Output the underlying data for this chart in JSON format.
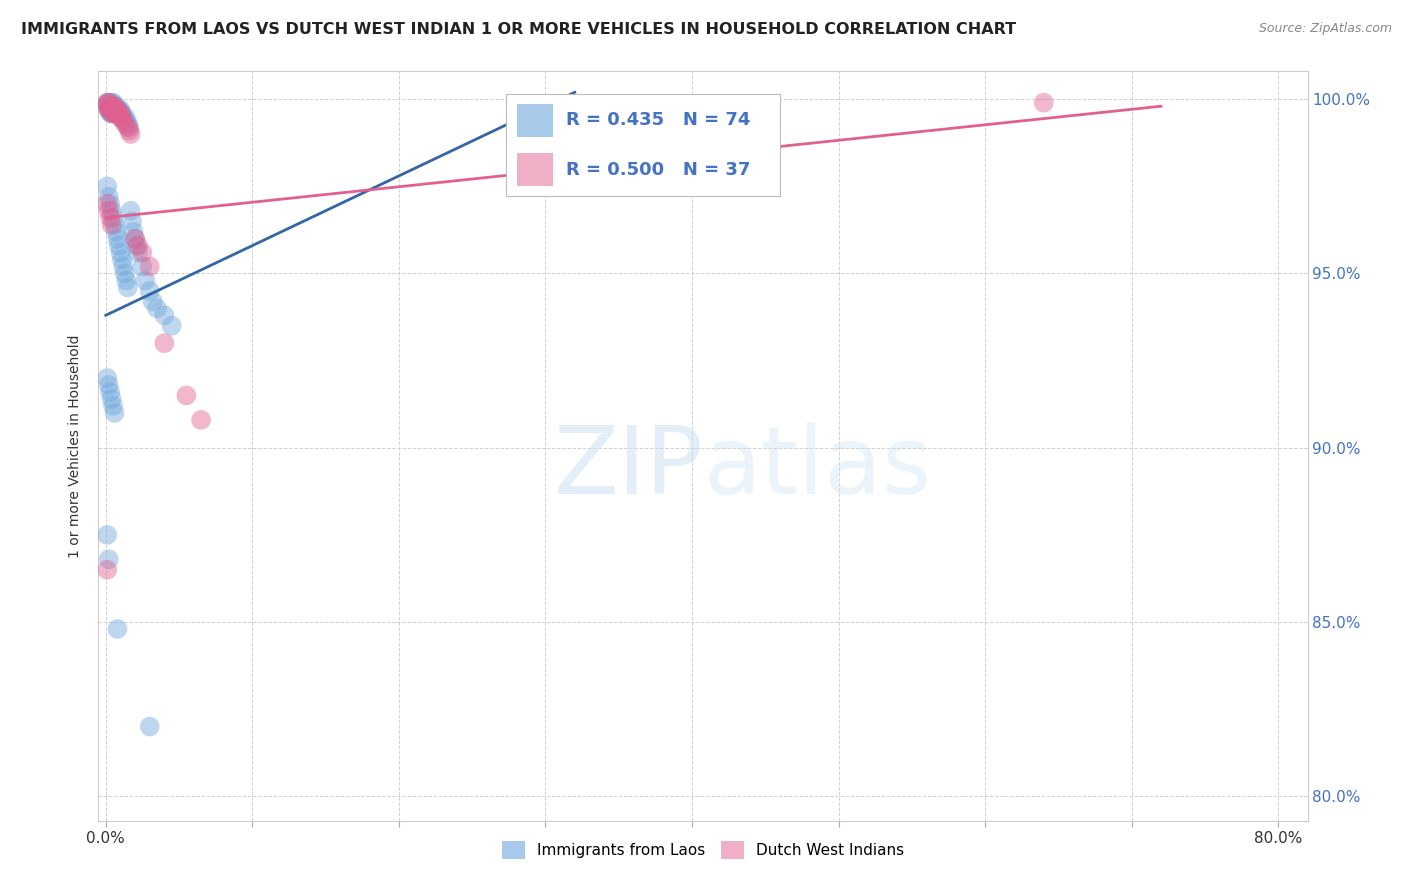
{
  "title": "IMMIGRANTS FROM LAOS VS DUTCH WEST INDIAN 1 OR MORE VEHICLES IN HOUSEHOLD CORRELATION CHART",
  "source": "Source: ZipAtlas.com",
  "ylabel": "1 or more Vehicles in Household",
  "xlim": [
    -0.005,
    0.82
  ],
  "ylim": [
    0.793,
    1.008
  ],
  "xticks": [
    0.0,
    0.1,
    0.2,
    0.3,
    0.4,
    0.5,
    0.6,
    0.7,
    0.8
  ],
  "xticklabels": [
    "0.0%",
    "",
    "",
    "",
    "",
    "",
    "",
    "",
    "80.0%"
  ],
  "yticks": [
    0.8,
    0.85,
    0.9,
    0.95,
    1.0
  ],
  "yticklabels": [
    "80.0%",
    "85.0%",
    "90.0%",
    "95.0%",
    "100.0%"
  ],
  "blue_color": "#6fa8dc",
  "pink_color": "#e06090",
  "blue_line_color": "#3465a4",
  "pink_line_color": "#e06090",
  "blue_R": 0.435,
  "blue_N": 74,
  "pink_R": 0.5,
  "pink_N": 37,
  "legend1_label": "Immigrants from Laos",
  "legend2_label": "Dutch West Indians",
  "watermark_zip": "ZIP",
  "watermark_atlas": "atlas",
  "background_color": "#ffffff",
  "blue_scatter_x": [
    0.001,
    0.001,
    0.002,
    0.002,
    0.002,
    0.003,
    0.003,
    0.003,
    0.003,
    0.004,
    0.004,
    0.004,
    0.004,
    0.005,
    0.005,
    0.005,
    0.005,
    0.006,
    0.006,
    0.006,
    0.007,
    0.007,
    0.007,
    0.008,
    0.008,
    0.009,
    0.009,
    0.01,
    0.01,
    0.011,
    0.011,
    0.012,
    0.013,
    0.014,
    0.015,
    0.016,
    0.017,
    0.018,
    0.019,
    0.02,
    0.021,
    0.022,
    0.025,
    0.027,
    0.03,
    0.032,
    0.035,
    0.04,
    0.045,
    0.001,
    0.002,
    0.003,
    0.004,
    0.005,
    0.006,
    0.007,
    0.008,
    0.009,
    0.01,
    0.011,
    0.012,
    0.013,
    0.014,
    0.015,
    0.001,
    0.002,
    0.003,
    0.004,
    0.005,
    0.006,
    0.001,
    0.002,
    0.008,
    0.03
  ],
  "blue_scatter_y": [
    0.999,
    0.998,
    0.999,
    0.998,
    0.997,
    0.999,
    0.998,
    0.997,
    0.996,
    0.999,
    0.998,
    0.997,
    0.996,
    0.999,
    0.998,
    0.997,
    0.996,
    0.998,
    0.997,
    0.996,
    0.998,
    0.997,
    0.996,
    0.997,
    0.996,
    0.997,
    0.996,
    0.997,
    0.995,
    0.996,
    0.995,
    0.994,
    0.995,
    0.994,
    0.993,
    0.992,
    0.968,
    0.965,
    0.962,
    0.96,
    0.958,
    0.956,
    0.952,
    0.948,
    0.945,
    0.942,
    0.94,
    0.938,
    0.935,
    0.975,
    0.972,
    0.97,
    0.968,
    0.966,
    0.964,
    0.962,
    0.96,
    0.958,
    0.956,
    0.954,
    0.952,
    0.95,
    0.948,
    0.946,
    0.92,
    0.918,
    0.916,
    0.914,
    0.912,
    0.91,
    0.875,
    0.868,
    0.848,
    0.82
  ],
  "pink_scatter_x": [
    0.001,
    0.001,
    0.002,
    0.002,
    0.003,
    0.003,
    0.004,
    0.004,
    0.005,
    0.005,
    0.006,
    0.006,
    0.007,
    0.007,
    0.008,
    0.008,
    0.009,
    0.01,
    0.011,
    0.012,
    0.013,
    0.015,
    0.016,
    0.017,
    0.02,
    0.022,
    0.025,
    0.03,
    0.04,
    0.055,
    0.065,
    0.001,
    0.002,
    0.003,
    0.004,
    0.001,
    0.64
  ],
  "pink_scatter_y": [
    0.999,
    0.998,
    0.999,
    0.997,
    0.998,
    0.997,
    0.998,
    0.996,
    0.997,
    0.996,
    0.998,
    0.997,
    0.997,
    0.996,
    0.997,
    0.996,
    0.995,
    0.996,
    0.995,
    0.994,
    0.993,
    0.992,
    0.991,
    0.99,
    0.96,
    0.958,
    0.956,
    0.952,
    0.93,
    0.915,
    0.908,
    0.97,
    0.968,
    0.966,
    0.964,
    0.865,
    0.999
  ],
  "blue_trend_x": [
    0.0,
    0.32
  ],
  "blue_trend_y": [
    0.938,
    1.002
  ],
  "pink_trend_x": [
    0.0,
    0.72
  ],
  "pink_trend_y": [
    0.966,
    0.998
  ]
}
